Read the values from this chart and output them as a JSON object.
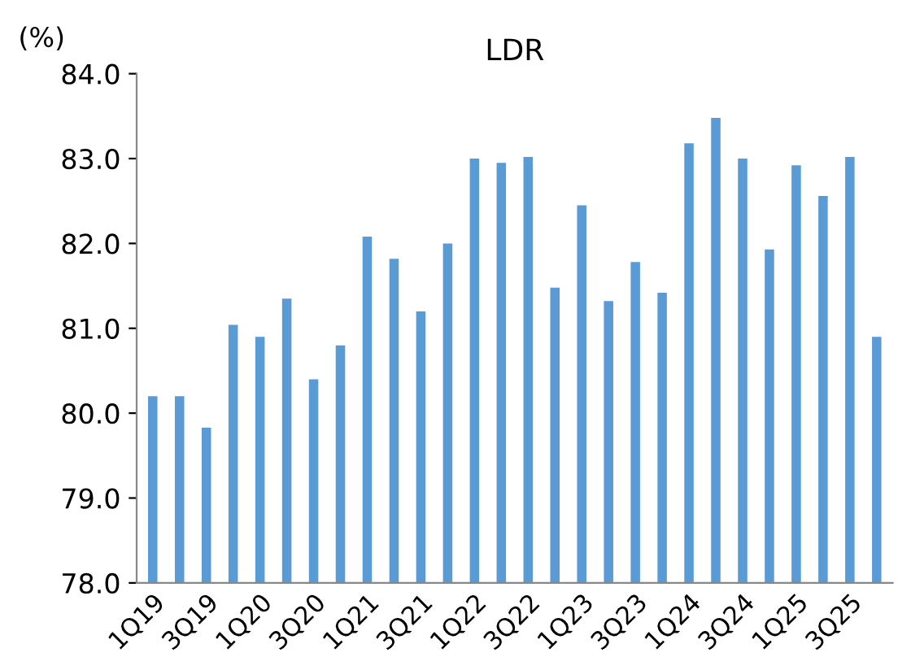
{
  "chart_data": {
    "type": "bar",
    "title": "LDR",
    "ylabel": "(%)",
    "categories": [
      "1Q19",
      null,
      "3Q19",
      null,
      "1Q20",
      null,
      "3Q20",
      null,
      "1Q21",
      null,
      "3Q21",
      null,
      "1Q22",
      null,
      "3Q22",
      null,
      "1Q23",
      null,
      "3Q23",
      null,
      "1Q24",
      null,
      "3Q24",
      null,
      "1Q25",
      null,
      "3Q25",
      null
    ],
    "values": [
      80.2,
      80.2,
      79.83,
      81.04,
      80.9,
      81.35,
      80.4,
      80.8,
      82.08,
      81.82,
      81.2,
      82.0,
      83.0,
      82.95,
      83.02,
      81.48,
      82.45,
      81.32,
      81.78,
      81.42,
      83.18,
      83.48,
      83.0,
      81.93,
      82.92,
      82.56,
      83.02,
      80.9
    ],
    "color": "#5b9bd5",
    "ylim": [
      78,
      84
    ],
    "yticks": [
      {
        "value": 78,
        "label": "78.0"
      },
      {
        "value": 79,
        "label": "79.0"
      },
      {
        "value": 80,
        "label": "80.0"
      },
      {
        "value": 81,
        "label": "81.0"
      },
      {
        "value": 82,
        "label": "82.0"
      },
      {
        "value": 83,
        "label": "83.0"
      },
      {
        "value": 84,
        "label": "84.0"
      }
    ],
    "grid": false,
    "legend": false
  }
}
